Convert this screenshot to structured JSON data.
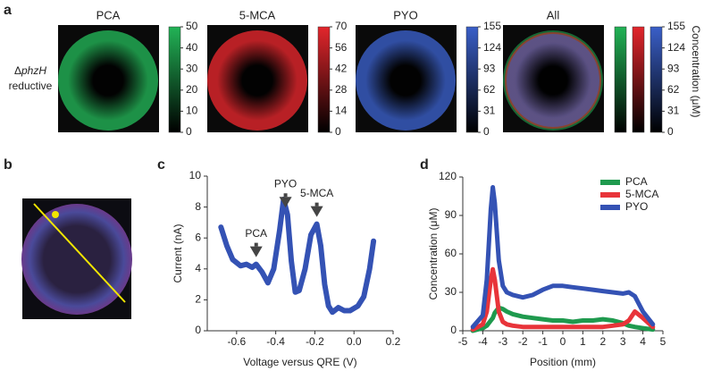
{
  "labels": [
    "a",
    "b",
    "c",
    "d"
  ],
  "panel_a": {
    "row_label": {
      "delta": "Δ",
      "gene": "phzH",
      "condition": "reductive"
    },
    "maps": [
      {
        "title": "PCA",
        "color": "#22b356",
        "clim": [
          0,
          50
        ],
        "ticks": [
          0,
          10,
          20,
          30,
          40,
          50
        ]
      },
      {
        "title": "5-MCA",
        "color": "#e3262c",
        "clim": [
          0,
          70
        ],
        "ticks": [
          0,
          14,
          28,
          42,
          56,
          70
        ]
      },
      {
        "title": "PYO",
        "color": "#3a5fc8",
        "clim": [
          0,
          155
        ],
        "ticks": [
          0,
          31,
          62,
          93,
          124,
          155
        ]
      }
    ],
    "combined": {
      "title": "All",
      "colors": [
        "#22b356",
        "#e3262c",
        "#3a5fc8"
      ],
      "clim": [
        0,
        155
      ],
      "ticks": [
        0,
        31,
        62,
        93,
        124,
        155
      ]
    },
    "colorbar_label": "Concentration (μM)"
  },
  "chart_data": [
    {
      "type": "line",
      "xlabel": "Voltage versus QRE (V)",
      "ylabel": "Current (nA)",
      "color": "#3452b4",
      "x": [
        -0.68,
        -0.65,
        -0.62,
        -0.58,
        -0.55,
        -0.52,
        -0.5,
        -0.47,
        -0.44,
        -0.41,
        -0.38,
        -0.36,
        -0.34,
        -0.32,
        -0.3,
        -0.28,
        -0.25,
        -0.22,
        -0.19,
        -0.17,
        -0.15,
        -0.13,
        -0.11,
        -0.08,
        -0.05,
        -0.02,
        0.02,
        0.05,
        0.08,
        0.1
      ],
      "values": [
        6.7,
        5.5,
        4.6,
        4.2,
        4.3,
        4.1,
        4.3,
        3.8,
        3.1,
        4.0,
        6.5,
        8.5,
        7.5,
        4.5,
        2.5,
        2.6,
        4.0,
        6.2,
        6.9,
        5.5,
        3.0,
        1.6,
        1.2,
        1.5,
        1.3,
        1.3,
        1.6,
        2.2,
        4.0,
        5.8
      ],
      "annotations": [
        {
          "text": "PCA",
          "x": -0.5
        },
        {
          "text": "PYO",
          "x": -0.35
        },
        {
          "text": "5-MCA",
          "x": -0.19
        }
      ],
      "xlim": [
        -0.75,
        0.2
      ],
      "xticks": [
        -0.6,
        -0.4,
        -0.2,
        {
          "value": 0,
          "label": "0.0"
        },
        0.2
      ],
      "ylim": [
        0,
        10
      ],
      "yticks": [
        0,
        2,
        4,
        6,
        8,
        10
      ]
    },
    {
      "type": "line",
      "xlabel": "Position (mm)",
      "ylabel": "Concentration (μM)",
      "legend": "upper right",
      "x": [
        -4.5,
        -4.0,
        -3.8,
        -3.6,
        -3.5,
        -3.4,
        -3.2,
        -3.0,
        -2.8,
        -2.5,
        -2,
        -1.5,
        -1,
        -0.5,
        0,
        0.5,
        1,
        1.5,
        2,
        2.5,
        3,
        3.3,
        3.6,
        4,
        4.5
      ],
      "series": [
        {
          "name": "PCA",
          "color": "#1f9a4e",
          "values": [
            0,
            2,
            4,
            8,
            10,
            14,
            18,
            17,
            15,
            13,
            11,
            10,
            9,
            8,
            8,
            7,
            8,
            8,
            9,
            8,
            6,
            4,
            3,
            2,
            1
          ]
        },
        {
          "name": "5-MCA",
          "color": "#e8343a",
          "values": [
            1,
            5,
            15,
            40,
            48,
            40,
            15,
            7,
            5,
            4,
            3,
            3,
            3,
            3,
            3,
            3,
            3,
            3,
            3,
            4,
            5,
            8,
            15,
            10,
            3
          ]
        },
        {
          "name": "PYO",
          "color": "#3452b4",
          "values": [
            3,
            12,
            40,
            95,
            112,
            100,
            55,
            35,
            30,
            28,
            26,
            28,
            32,
            35,
            35,
            34,
            33,
            32,
            31,
            30,
            29,
            30,
            27,
            15,
            5
          ]
        }
      ],
      "xlim": [
        -5,
        5
      ],
      "xticks": [
        -5,
        -4,
        -3,
        -2,
        -1,
        0,
        1,
        2,
        3,
        4,
        5
      ],
      "ylim": [
        0,
        120
      ],
      "yticks": [
        0,
        30,
        60,
        90,
        120
      ]
    }
  ]
}
